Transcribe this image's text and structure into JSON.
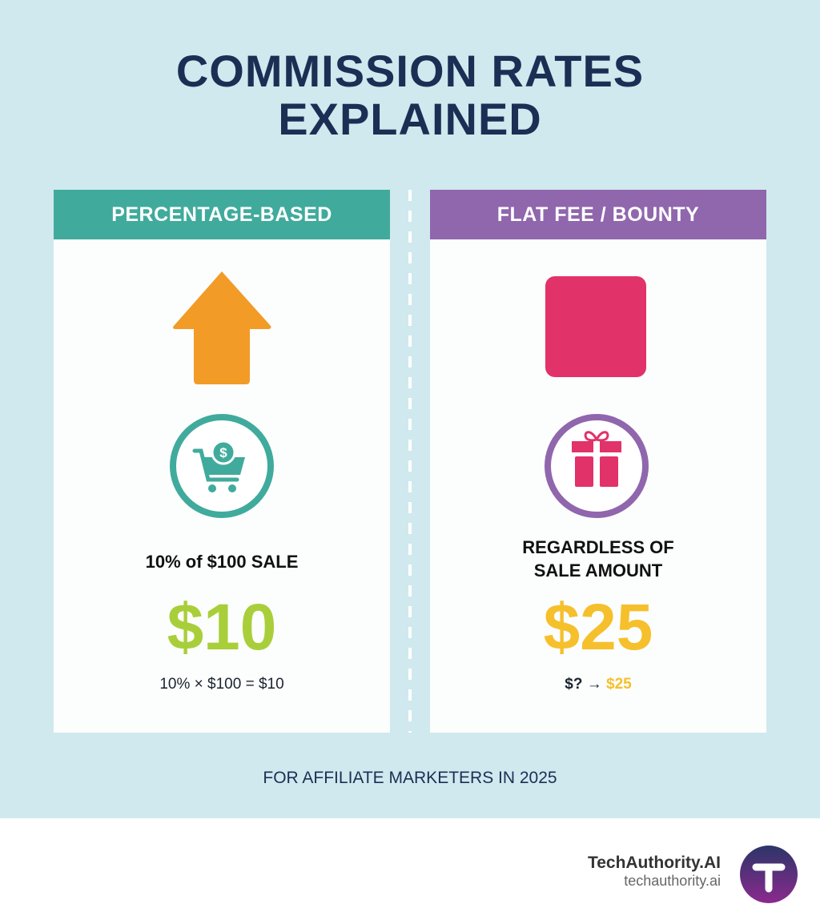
{
  "title": {
    "line1": "COMMISSION RATES",
    "line2": "EXPLAINED"
  },
  "left": {
    "header": "PERCENTAGE-BASED",
    "description": "10% of $100 SALE",
    "amount": "$10",
    "formula": "10% × $100 = $10",
    "icons": [
      "arrow-up-icon",
      "shopping-cart-dollar-icon"
    ]
  },
  "right": {
    "header": "FLAT FEE / BOUNTY",
    "description_line1": "REGARDLESS OF",
    "description_line2": "SALE AMOUNT",
    "amount": "$25",
    "formula_prefix": "$? →",
    "formula_value": "$25",
    "icons": [
      "square-icon",
      "gift-icon"
    ]
  },
  "subtitle": "FOR AFFILIATE MARKETERS IN 2025",
  "brand": {
    "name": "TechAuthority.AI",
    "url": "techauthority.ai"
  },
  "colors": {
    "background": "#d0e9ee",
    "title": "#1b2f55",
    "teal": "#40ab9c",
    "purple": "#9066ad",
    "orange": "#f29b27",
    "pink": "#e2326a",
    "lime": "#a8cf3a",
    "yellow": "#f6c02c"
  }
}
